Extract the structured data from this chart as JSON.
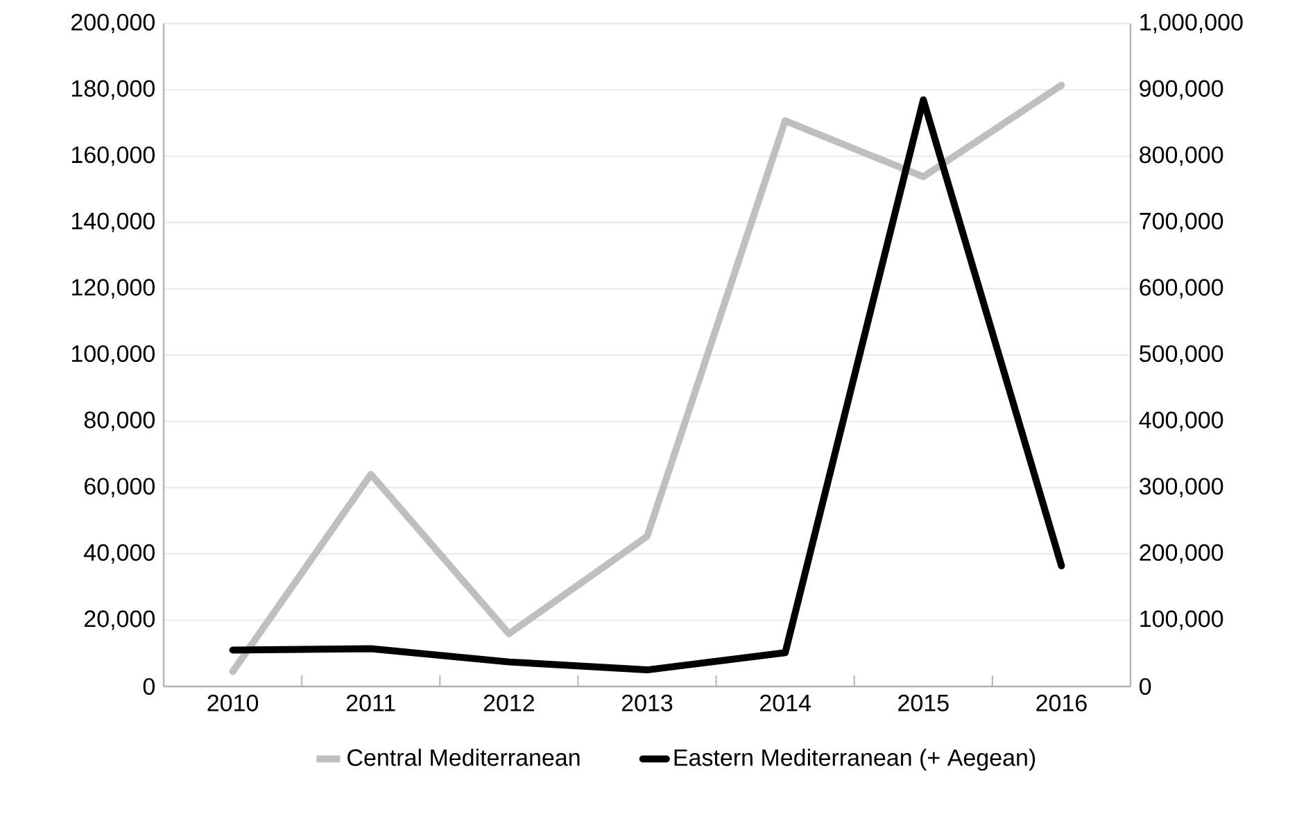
{
  "chart_data": {
    "type": "line",
    "categories": [
      "2010",
      "2011",
      "2012",
      "2013",
      "2014",
      "2015",
      "2016"
    ],
    "series": [
      {
        "name": "Central Mediterranean",
        "color": "#bfbfbf",
        "values": [
          4500,
          64000,
          15900,
          45300,
          170700,
          153800,
          181400
        ]
      },
      {
        "name": "Eastern Mediterranean (+ Aegean)",
        "color": "#000000",
        "axis": "y2",
        "values": [
          55000,
          57000,
          37000,
          25000,
          51000,
          885000,
          182000
        ]
      }
    ],
    "ylim": [
      0,
      200000
    ],
    "yticks": [
      {
        "value": 0,
        "label": "0"
      },
      {
        "value": 20000,
        "label": "20,000"
      },
      {
        "value": 40000,
        "label": "40,000"
      },
      {
        "value": 60000,
        "label": "60,000"
      },
      {
        "value": 80000,
        "label": "80,000"
      },
      {
        "value": 100000,
        "label": "100,000"
      },
      {
        "value": 120000,
        "label": "120,000"
      },
      {
        "value": 140000,
        "label": "140,000"
      },
      {
        "value": 160000,
        "label": "160,000"
      },
      {
        "value": 180000,
        "label": "180,000"
      },
      {
        "value": 200000,
        "label": "200,000"
      }
    ],
    "y2lim": [
      0,
      1000000
    ],
    "y2ticks": [
      {
        "value": 0,
        "label": "0"
      },
      {
        "value": 100000,
        "label": "100,000"
      },
      {
        "value": 200000,
        "label": "200,000"
      },
      {
        "value": 300000,
        "label": "300,000"
      },
      {
        "value": 400000,
        "label": "400,000"
      },
      {
        "value": 500000,
        "label": "500,000"
      },
      {
        "value": 600000,
        "label": "600,000"
      },
      {
        "value": 700000,
        "label": "700,000"
      },
      {
        "value": 800000,
        "label": "800,000"
      },
      {
        "value": 900000,
        "label": "900,000"
      },
      {
        "value": 1000000,
        "label": "1,000,000"
      }
    ],
    "grid": "y",
    "legend": "bottom"
  }
}
